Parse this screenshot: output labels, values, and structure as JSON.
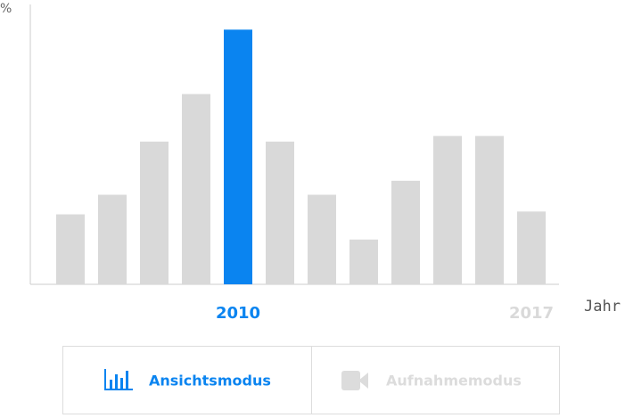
{
  "chart_data": {
    "type": "bar",
    "y_label": "%",
    "x_label": "Jahr",
    "categories": [
      null,
      null,
      null,
      null,
      "2010",
      null,
      null,
      null,
      null,
      null,
      null,
      "2017"
    ],
    "values": [
      25,
      32,
      51,
      68,
      91,
      51,
      32,
      16,
      37,
      53,
      53,
      26
    ],
    "colors": [
      "#d9d9d9",
      "#d9d9d9",
      "#d9d9d9",
      "#d9d9d9",
      "#0a84f0",
      "#d9d9d9",
      "#d9d9d9",
      "#d9d9d9",
      "#d9d9d9",
      "#d9d9d9",
      "#d9d9d9",
      "#d9d9d9"
    ],
    "ylim": [
      0,
      100
    ]
  },
  "mode_buttons": [
    {
      "label": "Ansichtsmodus",
      "color": "#0a84f0"
    },
    {
      "label": "Aufnahmemodus",
      "color": "#dcdcdc"
    }
  ]
}
